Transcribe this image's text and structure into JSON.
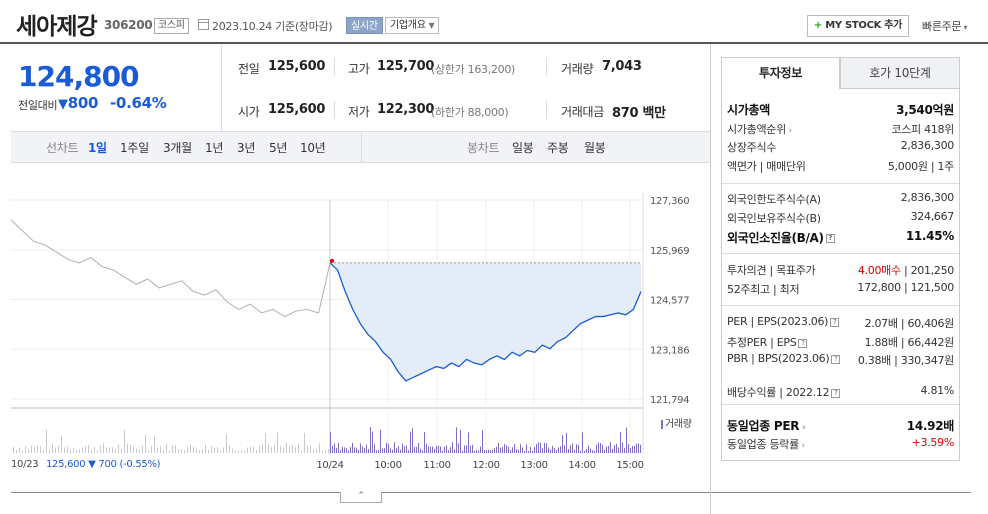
{
  "header": {
    "stock_name": "세아제강",
    "stock_code": "306200",
    "market": "코스피",
    "base_date": "2023.10.24 기준(장마감)",
    "realtime_label": "실시간",
    "company_overview_label": "기업개요",
    "mystock_label": "MY STOCK 추가",
    "quick_order_label": "빠른주문"
  },
  "price": {
    "current": "124,800",
    "prev_day_label": "전일대비",
    "change_amount": "800",
    "change_percent": "-0.64%",
    "direction": "down"
  },
  "quote": {
    "prev_close_label": "전일",
    "prev_close": "125,600",
    "high_label": "고가",
    "high": "125,700",
    "upper_limit": "(상한가 163,200)",
    "volume_label": "거래량",
    "volume": "7,043",
    "open_label": "시가",
    "open": "125,600",
    "low_label": "저가",
    "low": "122,300",
    "lower_limit": "(하한가 88,000)",
    "amount_label": "거래대금",
    "amount": "870 백만"
  },
  "toolbar": {
    "line_chart_label": "선차트",
    "periods": [
      "1일",
      "1주일",
      "3개월",
      "1년",
      "3년",
      "5년",
      "10년"
    ],
    "active_period": "1일",
    "candle_chart_label": "봉차트",
    "candle_periods": [
      "일봉",
      "주봉",
      "월봉"
    ]
  },
  "chart": {
    "y_ticks": [
      "127,360",
      "125,969",
      "124,577",
      "123,186",
      "121,794"
    ],
    "x_ticks": [
      "10/24",
      "10:00",
      "11:00",
      "12:00",
      "13:00",
      "14:00",
      "15:00"
    ],
    "prev_day_date": "10/23",
    "prev_day_summary": "125,600 ▼ 700 (-0.55%)",
    "volume_label": "거래량",
    "colors": {
      "line": "#1a5bd6",
      "fill": "#e4ecf8",
      "prev_line": "#b0b0b0",
      "volume": "#7a6fc4"
    }
  },
  "chart_data": {
    "type": "line",
    "x_axis_labels": [
      "10/24",
      "10:00",
      "11:00",
      "12:00",
      "13:00",
      "14:00",
      "15:00"
    ],
    "ylim": [
      121794,
      127360
    ],
    "y_tick_labels": [
      "127,360",
      "125,969",
      "124,577",
      "123,186",
      "121,794"
    ],
    "series": [
      {
        "values": [
          125600,
          125400,
          124800,
          124300,
          123900,
          123600,
          123400,
          123100,
          122900,
          122550,
          122300,
          122400,
          122500,
          122600,
          122700,
          122650,
          122800,
          122700,
          122900,
          122800,
          122750,
          122900,
          123000,
          122900,
          123100,
          123000,
          123150,
          123100,
          123300,
          123200,
          123400,
          123500,
          123700,
          123900,
          124000,
          124100,
          124100,
          124150,
          124200,
          124150,
          124300,
          124800
        ]
      },
      {
        "values": [
          126800,
          126500,
          126200,
          126100,
          125900,
          125700,
          125600,
          125750,
          125500,
          125400,
          125200,
          125000,
          125150,
          124900,
          125000,
          125100,
          124800,
          124700,
          124850,
          124500,
          124300,
          124450,
          124200,
          124300,
          124100,
          124250,
          124300,
          124200,
          125600
        ]
      }
    ],
    "grid": true
  },
  "right_panel": {
    "tab_invest": "투자정보",
    "tab_hoga": "호가 10단계",
    "rows": [
      {
        "label": "시가총액",
        "value": "3,540억원",
        "bold": true
      },
      {
        "label": "시가총액순위",
        "value": "코스피 418위",
        "arrow": true
      },
      {
        "label": "상장주식수",
        "value": "2,836,300"
      },
      {
        "label": "액면가 | 매매단위",
        "value": "5,000원 | 1주"
      },
      {
        "label": "외국인한도주식수(A)",
        "value": "2,836,300"
      },
      {
        "label": "외국인보유주식수(B)",
        "value": "324,667"
      },
      {
        "label": "외국인소진율(B/A)",
        "value": "11.45%",
        "bold": true,
        "q": true
      },
      {
        "label": "투자의견 | 목표주가",
        "value_red": "4.00매수",
        "value": " | 201,250"
      },
      {
        "label": "52주최고 | 최저",
        "value": "172,800 | 121,500"
      },
      {
        "label": "PER | EPS(2023.06)",
        "value": "2.07배 | 60,406원",
        "q": true
      },
      {
        "label": "추정PER | EPS",
        "value": "1.88배 | 66,442원",
        "q": true
      },
      {
        "label": "PBR | BPS(2023.06)",
        "value": "0.38배 | 330,347원",
        "q": true
      },
      {
        "label": "배당수익률 | 2022.12",
        "value": "4.81%",
        "q": true
      },
      {
        "label": "동일업종 PER",
        "value": "14.92배",
        "bold": true,
        "arrow": true
      },
      {
        "label": "동일업종 등락률",
        "value": "+3.59%",
        "arrow": true,
        "red": true
      }
    ]
  }
}
